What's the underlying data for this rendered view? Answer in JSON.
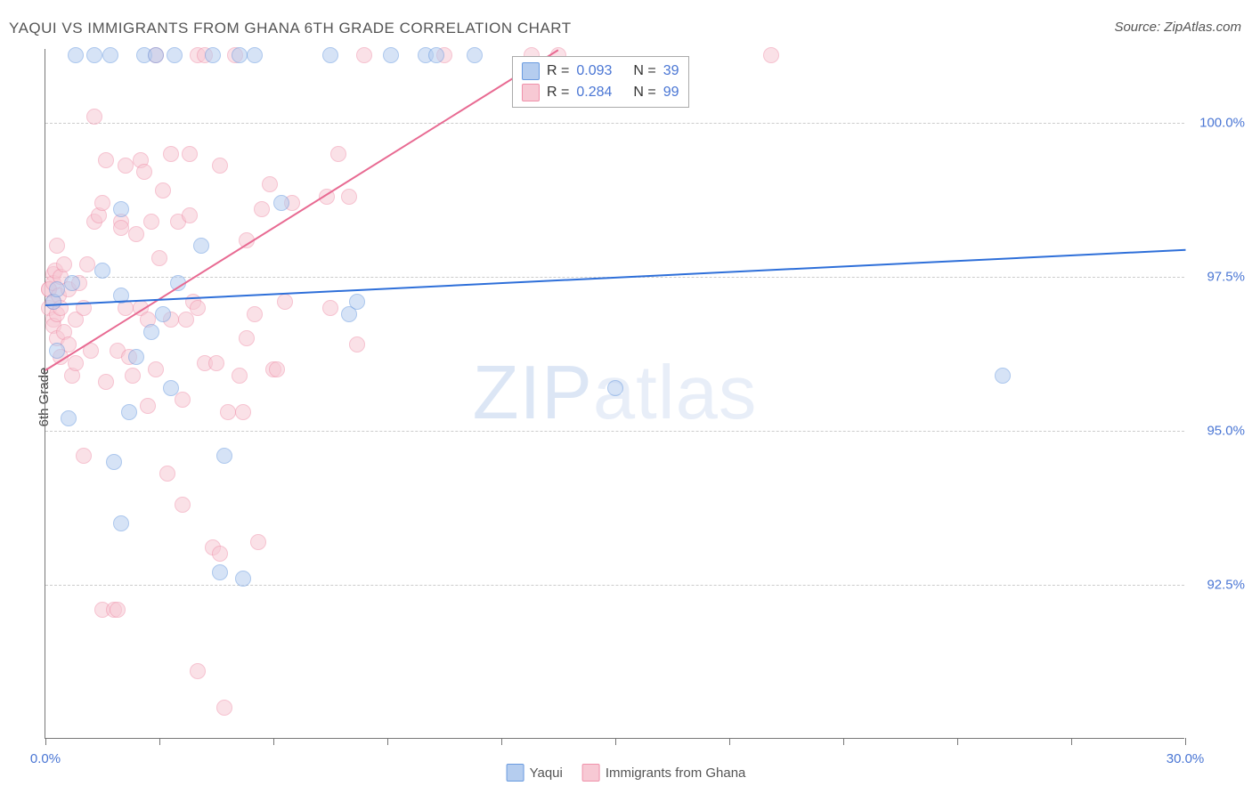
{
  "title": "YAQUI VS IMMIGRANTS FROM GHANA 6TH GRADE CORRELATION CHART",
  "source": "Source: ZipAtlas.com",
  "yaxis_title": "6th Grade",
  "watermark_bold": "ZIP",
  "watermark_light": "atlas",
  "colors": {
    "blue_fill": "#b5cdef",
    "blue_stroke": "#6a9be0",
    "blue_line": "#2e6fd9",
    "pink_fill": "#f7c9d4",
    "pink_stroke": "#f092ab",
    "pink_line": "#e86a92",
    "tick_label": "#4a76d4",
    "grid": "#cccccc",
    "axis": "#777777"
  },
  "chart": {
    "type": "scatter",
    "xlim": [
      0,
      30
    ],
    "ylim": [
      90.0,
      101.2
    ],
    "y_ticks": [
      92.5,
      95.0,
      97.5,
      100.0
    ],
    "y_tick_labels": [
      "92.5%",
      "95.0%",
      "97.5%",
      "100.0%"
    ],
    "x_ticks": [
      0,
      3,
      6,
      9,
      12,
      15,
      18,
      21,
      24,
      27,
      30
    ],
    "x_labels": [
      {
        "v": 0,
        "t": "0.0%"
      },
      {
        "v": 30,
        "t": "30.0%"
      }
    ],
    "point_radius": 9,
    "point_opacity": 0.55
  },
  "legend": {
    "rows": [
      {
        "color_key": "blue",
        "r_label": "R =",
        "r_val": "0.093",
        "n_label": "N =",
        "n_val": "39"
      },
      {
        "color_key": "pink",
        "r_label": "R =",
        "r_val": "0.284",
        "n_label": "N =",
        "n_val": "99"
      }
    ]
  },
  "bottom_legend": [
    {
      "color_key": "blue",
      "label": "Yaqui"
    },
    {
      "color_key": "pink",
      "label": "Immigrants from Ghana"
    }
  ],
  "series_blue": {
    "trend": {
      "x1": 0,
      "y1": 97.05,
      "x2": 30,
      "y2": 97.95
    },
    "points": [
      [
        0.2,
        97.1
      ],
      [
        0.3,
        96.3
      ],
      [
        0.3,
        97.3
      ],
      [
        0.6,
        95.2
      ],
      [
        0.7,
        97.4
      ],
      [
        0.8,
        101.1
      ],
      [
        1.3,
        101.1
      ],
      [
        1.5,
        97.6
      ],
      [
        1.7,
        101.1
      ],
      [
        1.8,
        94.5
      ],
      [
        2.0,
        97.2
      ],
      [
        2.0,
        98.6
      ],
      [
        2.0,
        93.5
      ],
      [
        2.2,
        95.3
      ],
      [
        2.4,
        96.2
      ],
      [
        2.6,
        101.1
      ],
      [
        2.8,
        96.6
      ],
      [
        2.9,
        101.1
      ],
      [
        3.1,
        96.9
      ],
      [
        3.3,
        95.7
      ],
      [
        3.4,
        101.1
      ],
      [
        3.5,
        97.4
      ],
      [
        4.1,
        98.0
      ],
      [
        4.4,
        101.1
      ],
      [
        4.6,
        92.7
      ],
      [
        4.7,
        94.6
      ],
      [
        5.1,
        101.1
      ],
      [
        5.2,
        92.6
      ],
      [
        5.5,
        101.1
      ],
      [
        6.2,
        98.7
      ],
      [
        7.5,
        101.1
      ],
      [
        8.0,
        96.9
      ],
      [
        8.2,
        97.1
      ],
      [
        9.1,
        101.1
      ],
      [
        10.0,
        101.1
      ],
      [
        10.3,
        101.1
      ],
      [
        11.3,
        101.1
      ],
      [
        15.0,
        95.7
      ],
      [
        25.2,
        95.9
      ]
    ]
  },
  "series_pink": {
    "trend": {
      "x1": 0,
      "y1": 96.0,
      "x2": 13.5,
      "y2": 101.2
    },
    "points": [
      [
        0.1,
        97.3
      ],
      [
        0.1,
        97.0
      ],
      [
        0.1,
        97.3
      ],
      [
        0.2,
        97.55
      ],
      [
        0.2,
        97.4
      ],
      [
        0.2,
        96.8
      ],
      [
        0.2,
        97.1
      ],
      [
        0.2,
        96.7
      ],
      [
        0.25,
        97.6
      ],
      [
        0.3,
        96.9
      ],
      [
        0.3,
        96.5
      ],
      [
        0.3,
        98.0
      ],
      [
        0.35,
        97.2
      ],
      [
        0.4,
        97.5
      ],
      [
        0.4,
        96.2
      ],
      [
        0.4,
        97.0
      ],
      [
        0.5,
        97.7
      ],
      [
        0.5,
        96.6
      ],
      [
        0.6,
        96.4
      ],
      [
        0.6,
        97.3
      ],
      [
        0.7,
        95.9
      ],
      [
        0.8,
        96.1
      ],
      [
        0.8,
        96.8
      ],
      [
        0.9,
        97.4
      ],
      [
        1.0,
        97.0
      ],
      [
        1.0,
        94.6
      ],
      [
        1.1,
        97.7
      ],
      [
        1.2,
        96.3
      ],
      [
        1.3,
        98.4
      ],
      [
        1.3,
        100.1
      ],
      [
        1.4,
        98.5
      ],
      [
        1.5,
        92.1
      ],
      [
        1.5,
        98.7
      ],
      [
        1.6,
        95.8
      ],
      [
        1.6,
        99.4
      ],
      [
        1.8,
        92.1
      ],
      [
        1.9,
        96.3
      ],
      [
        1.9,
        92.1
      ],
      [
        2.0,
        98.4
      ],
      [
        2.0,
        98.3
      ],
      [
        2.1,
        97.0
      ],
      [
        2.1,
        99.3
      ],
      [
        2.2,
        96.2
      ],
      [
        2.3,
        95.9
      ],
      [
        2.4,
        98.2
      ],
      [
        2.5,
        99.4
      ],
      [
        2.5,
        97.0
      ],
      [
        2.6,
        99.2
      ],
      [
        2.7,
        96.8
      ],
      [
        2.7,
        95.4
      ],
      [
        2.8,
        98.4
      ],
      [
        2.9,
        101.1
      ],
      [
        2.9,
        96.0
      ],
      [
        3.0,
        97.8
      ],
      [
        3.1,
        98.9
      ],
      [
        3.2,
        94.3
      ],
      [
        3.3,
        99.5
      ],
      [
        3.3,
        96.8
      ],
      [
        3.5,
        98.4
      ],
      [
        3.6,
        95.5
      ],
      [
        3.6,
        93.8
      ],
      [
        3.7,
        96.8
      ],
      [
        3.8,
        99.5
      ],
      [
        3.8,
        98.5
      ],
      [
        3.9,
        97.1
      ],
      [
        4.0,
        101.1
      ],
      [
        4.0,
        97.0
      ],
      [
        4.0,
        91.1
      ],
      [
        4.2,
        96.1
      ],
      [
        4.2,
        101.1
      ],
      [
        4.4,
        93.1
      ],
      [
        4.5,
        96.1
      ],
      [
        4.6,
        99.3
      ],
      [
        4.6,
        93.0
      ],
      [
        4.7,
        90.5
      ],
      [
        4.8,
        95.3
      ],
      [
        5.0,
        101.1
      ],
      [
        5.1,
        95.9
      ],
      [
        5.2,
        95.3
      ],
      [
        5.3,
        98.1
      ],
      [
        5.3,
        96.5
      ],
      [
        5.5,
        96.9
      ],
      [
        5.6,
        93.2
      ],
      [
        5.7,
        98.6
      ],
      [
        5.9,
        99.0
      ],
      [
        6.0,
        96.0
      ],
      [
        6.1,
        96.0
      ],
      [
        6.3,
        97.1
      ],
      [
        6.5,
        98.7
      ],
      [
        7.4,
        98.8
      ],
      [
        7.5,
        97.0
      ],
      [
        7.7,
        99.5
      ],
      [
        8.0,
        98.8
      ],
      [
        8.2,
        96.4
      ],
      [
        8.4,
        101.1
      ],
      [
        10.5,
        101.1
      ],
      [
        12.8,
        101.1
      ],
      [
        13.5,
        101.1
      ],
      [
        19.1,
        101.1
      ]
    ]
  }
}
